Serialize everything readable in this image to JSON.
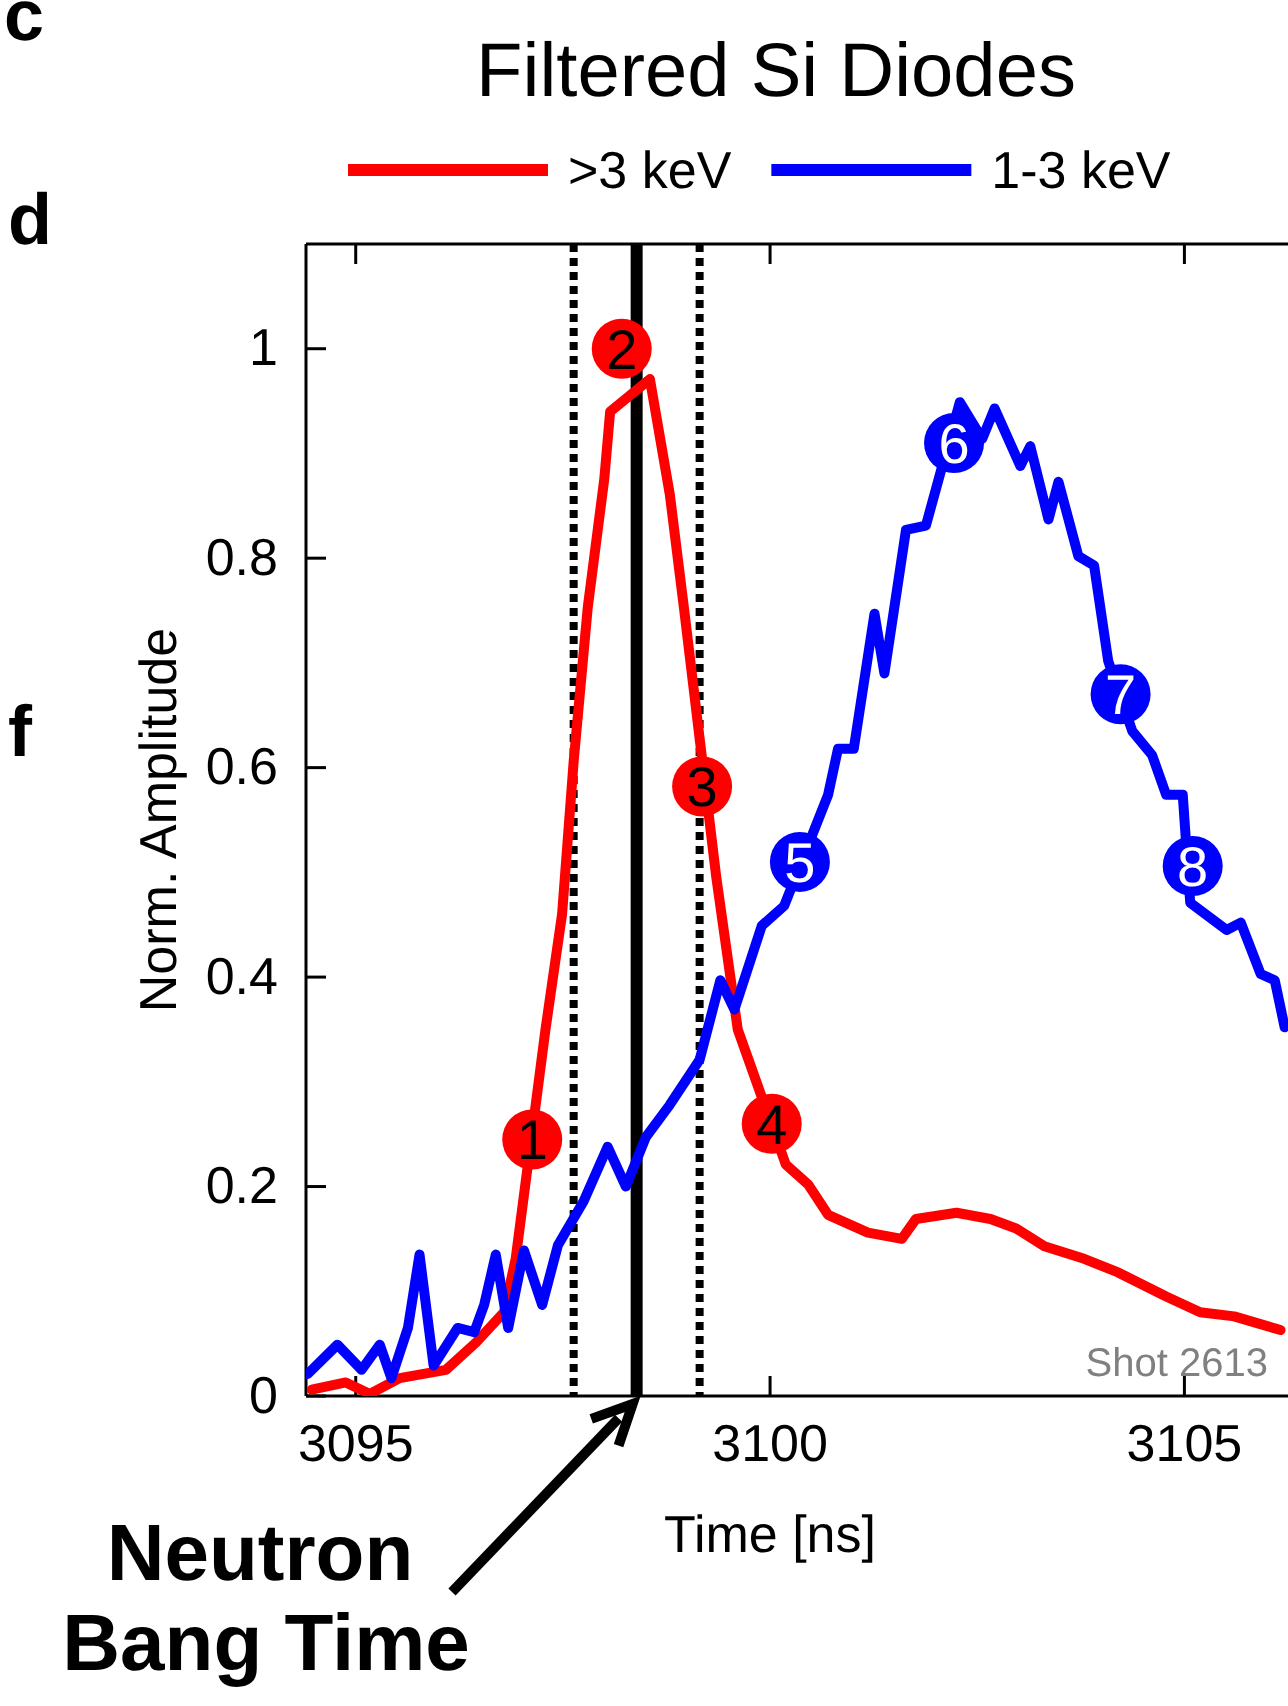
{
  "chart_data": {
    "type": "line",
    "title": "Filtered Si Diodes",
    "xlabel": "Time [ns]",
    "ylabel": "Norm. Amplitude",
    "xlim": [
      3094.4,
      3106.25
    ],
    "ylim": [
      0,
      1.1
    ],
    "xticks": [
      3095,
      3100,
      3105
    ],
    "yticks": [
      0,
      0.2,
      0.4,
      0.6,
      0.8,
      1
    ],
    "legend": "top",
    "grid": false,
    "line_style": "solid",
    "series": [
      {
        "name": ">3 keV",
        "color": "#ff0000",
        "x": [
          3094.47,
          3094.88,
          3095.17,
          3095.53,
          3096.09,
          3096.45,
          3096.79,
          3096.93,
          3097.29,
          3097.49,
          3097.63,
          3097.8,
          3098.0,
          3098.07,
          3098.55,
          3098.79,
          3098.96,
          3099.35,
          3099.61,
          3100.19,
          3100.46,
          3100.7,
          3101.18,
          3101.59,
          3101.76,
          3102.25,
          3102.66,
          3102.97,
          3103.31,
          3103.79,
          3104.2,
          3104.78,
          3105.19,
          3105.6,
          3106.16
        ],
        "values": [
          0.006,
          0.013,
          0.002,
          0.017,
          0.025,
          0.051,
          0.08,
          0.131,
          0.35,
          0.46,
          0.606,
          0.753,
          0.876,
          0.94,
          0.971,
          0.861,
          0.753,
          0.496,
          0.35,
          0.221,
          0.202,
          0.173,
          0.156,
          0.15,
          0.169,
          0.175,
          0.169,
          0.16,
          0.143,
          0.131,
          0.118,
          0.095,
          0.08,
          0.076,
          0.063
        ]
      },
      {
        "name": "1-3 keV",
        "color": "#0000ff",
        "x": [
          3094.42,
          3094.78,
          3095.07,
          3095.29,
          3095.43,
          3095.63,
          3095.77,
          3095.94,
          3096.23,
          3096.43,
          3096.55,
          3096.69,
          3096.84,
          3097.03,
          3097.25,
          3097.44,
          3097.75,
          3098.04,
          3098.26,
          3098.5,
          3098.79,
          3099.15,
          3099.4,
          3099.57,
          3099.9,
          3100.17,
          3100.7,
          3100.82,
          3101.01,
          3101.26,
          3101.38,
          3101.64,
          3101.88,
          3102.29,
          3102.56,
          3102.71,
          3103.02,
          3103.14,
          3103.36,
          3103.48,
          3103.72,
          3103.91,
          3104.08,
          3104.37,
          3104.61,
          3104.78,
          3104.98,
          3105.07,
          3105.51,
          3105.68,
          3105.92,
          3106.09,
          3106.21
        ],
        "values": [
          0.021,
          0.049,
          0.025,
          0.049,
          0.017,
          0.065,
          0.135,
          0.029,
          0.065,
          0.061,
          0.087,
          0.135,
          0.065,
          0.139,
          0.087,
          0.144,
          0.186,
          0.238,
          0.2,
          0.247,
          0.278,
          0.321,
          0.397,
          0.369,
          0.449,
          0.468,
          0.574,
          0.618,
          0.618,
          0.747,
          0.69,
          0.827,
          0.831,
          0.949,
          0.914,
          0.943,
          0.888,
          0.907,
          0.837,
          0.873,
          0.802,
          0.793,
          0.702,
          0.635,
          0.612,
          0.574,
          0.574,
          0.471,
          0.445,
          0.452,
          0.403,
          0.397,
          0.352
        ]
      }
    ],
    "ref_lines": [
      {
        "axis": "x",
        "value": 3097.63,
        "color": "#000000",
        "line_style": "dotted"
      },
      {
        "axis": "x",
        "value": 3098.39,
        "color": "#000000",
        "line_style": "solid"
      },
      {
        "axis": "x",
        "value": 3099.15,
        "color": "#000000",
        "line_style": "dotted"
      }
    ],
    "annotations": [
      "c",
      "d",
      "f",
      "Shot 2613",
      {
        "text": "Neutron Bang Time",
        "x": 3098.39,
        "y": 0
      },
      {
        "text": "1",
        "x": 3097.13,
        "y": 0.245
      },
      {
        "text": "2",
        "x": 3098.21,
        "y": 1.0
      },
      {
        "text": "3",
        "x": 3099.18,
        "y": 0.582
      },
      {
        "text": "4",
        "x": 3100.02,
        "y": 0.26
      },
      {
        "text": "5",
        "x": 3100.36,
        "y": 0.51
      },
      {
        "text": "6",
        "x": 3102.22,
        "y": 0.91
      },
      {
        "text": "7",
        "x": 3104.23,
        "y": 0.67
      },
      {
        "text": "8",
        "x": 3105.1,
        "y": 0.506
      }
    ]
  }
}
